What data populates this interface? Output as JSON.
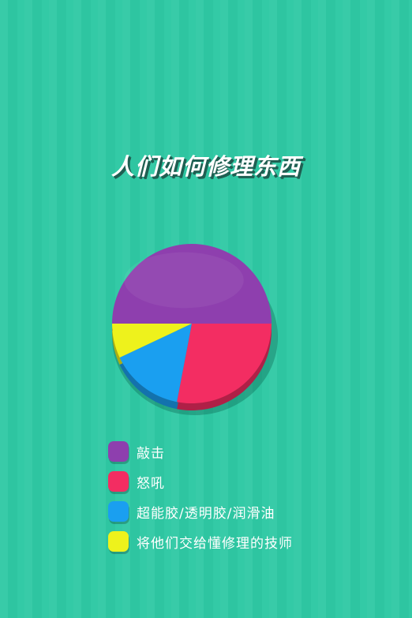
{
  "title": "人们如何修理东西",
  "chart_data": {
    "type": "pie",
    "title": "人们如何修理东西",
    "slices": [
      {
        "label": "敲击",
        "value": 50,
        "color": "#8e3fae"
      },
      {
        "label": "怒吼",
        "value": 28,
        "color": "#f32d62"
      },
      {
        "label": "超能胶/透明胶/润滑油",
        "value": 15,
        "color": "#1a9ff0"
      },
      {
        "label": "将他们交给懂修理的技师",
        "value": 7,
        "color": "#eef21c"
      }
    ],
    "legend_position": "bottom"
  }
}
